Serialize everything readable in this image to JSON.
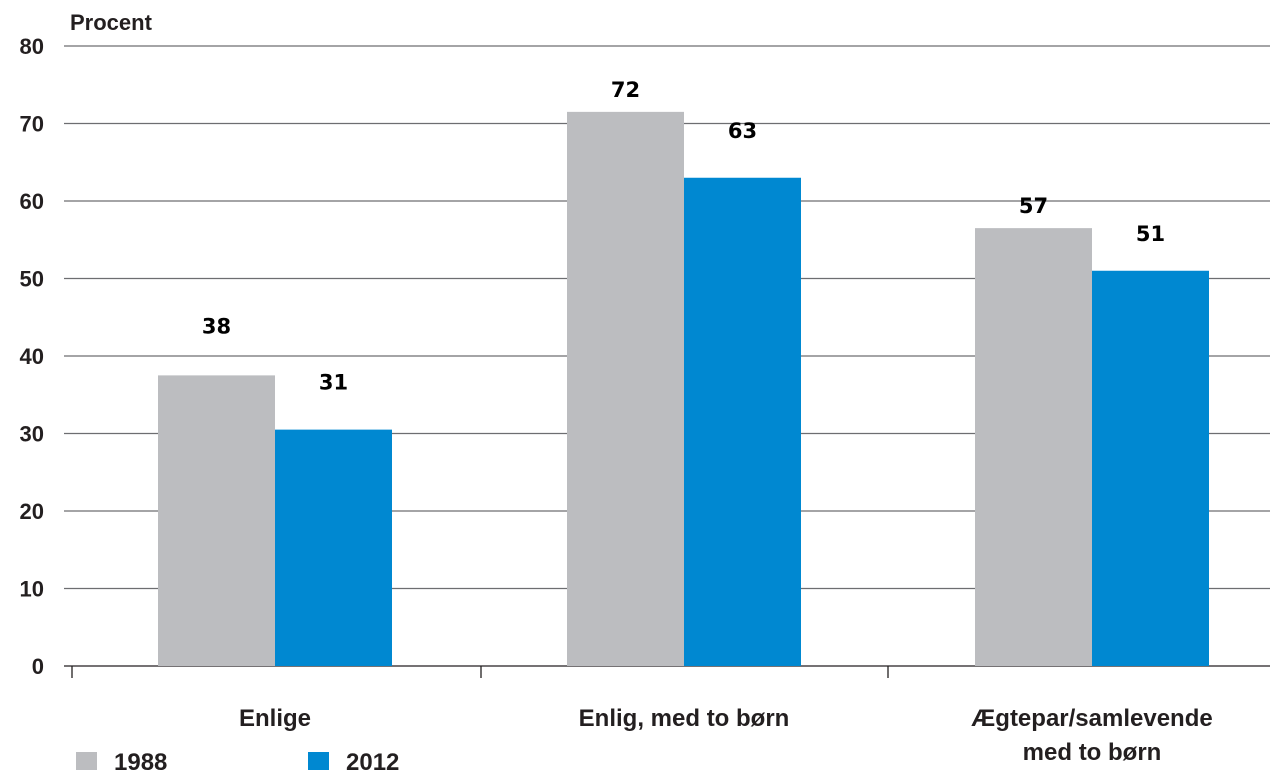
{
  "chart_data": {
    "type": "bar",
    "ylabel": "Procent",
    "xlabel": "",
    "ylim": [
      0,
      80
    ],
    "yticks": [
      0,
      10,
      20,
      30,
      40,
      50,
      60,
      70,
      80
    ],
    "grid": true,
    "legend_position": "bottom-left",
    "categories": [
      [
        "Enlige"
      ],
      [
        "Enlig, med to børn"
      ],
      [
        "Ægtepar/samlevende",
        "med to børn"
      ]
    ],
    "series": [
      {
        "name": "1988",
        "color": "#bcbdc0",
        "values": [
          37.5,
          71.5,
          56.5
        ],
        "labels": [
          "38",
          "72",
          "57"
        ]
      },
      {
        "name": "2012",
        "color": "#0088d1",
        "values": [
          30.5,
          63.0,
          51.0
        ],
        "labels": [
          "31",
          "63",
          "51"
        ]
      }
    ]
  }
}
